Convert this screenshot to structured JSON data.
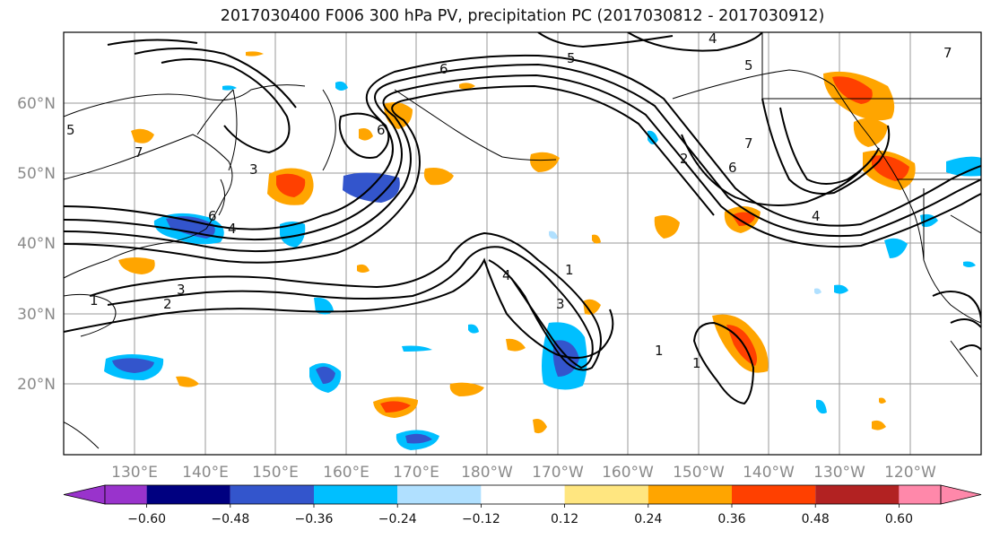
{
  "title": "2017030400 F006 300 hPa PV, precipitation PC (2017030812 - 2017030912)",
  "lon_labels": [
    "130°E",
    "140°E",
    "150°E",
    "160°E",
    "170°E",
    "180°W",
    "170°W",
    "160°W",
    "150°W",
    "140°W",
    "130°W",
    "120°W"
  ],
  "lat_labels": [
    "60°N",
    "50°N",
    "40°N",
    "30°N",
    "20°N"
  ],
  "colorbar": {
    "tick_labels": [
      "−0.60",
      "−0.48",
      "−0.36",
      "−0.24",
      "−0.12",
      "0.12",
      "0.24",
      "0.36",
      "0.48",
      "0.60"
    ],
    "colors": [
      "#9933cc",
      "#000080",
      "#3355cc",
      "#00bfff",
      "#b0e0ff",
      "#ffffff",
      "#ffe680",
      "#ffa500",
      "#ff4000",
      "#b22222",
      "#ff88aa"
    ]
  },
  "contour_labels": [
    "1",
    "2",
    "3",
    "4",
    "5",
    "6",
    "7"
  ],
  "colors": {
    "positive": "#ffa500",
    "positive_strong": "#ff4000",
    "negative": "#00bfff",
    "negative_strong": "#3355cc",
    "contour": "#000000",
    "grid": "#9a9a9a"
  }
}
